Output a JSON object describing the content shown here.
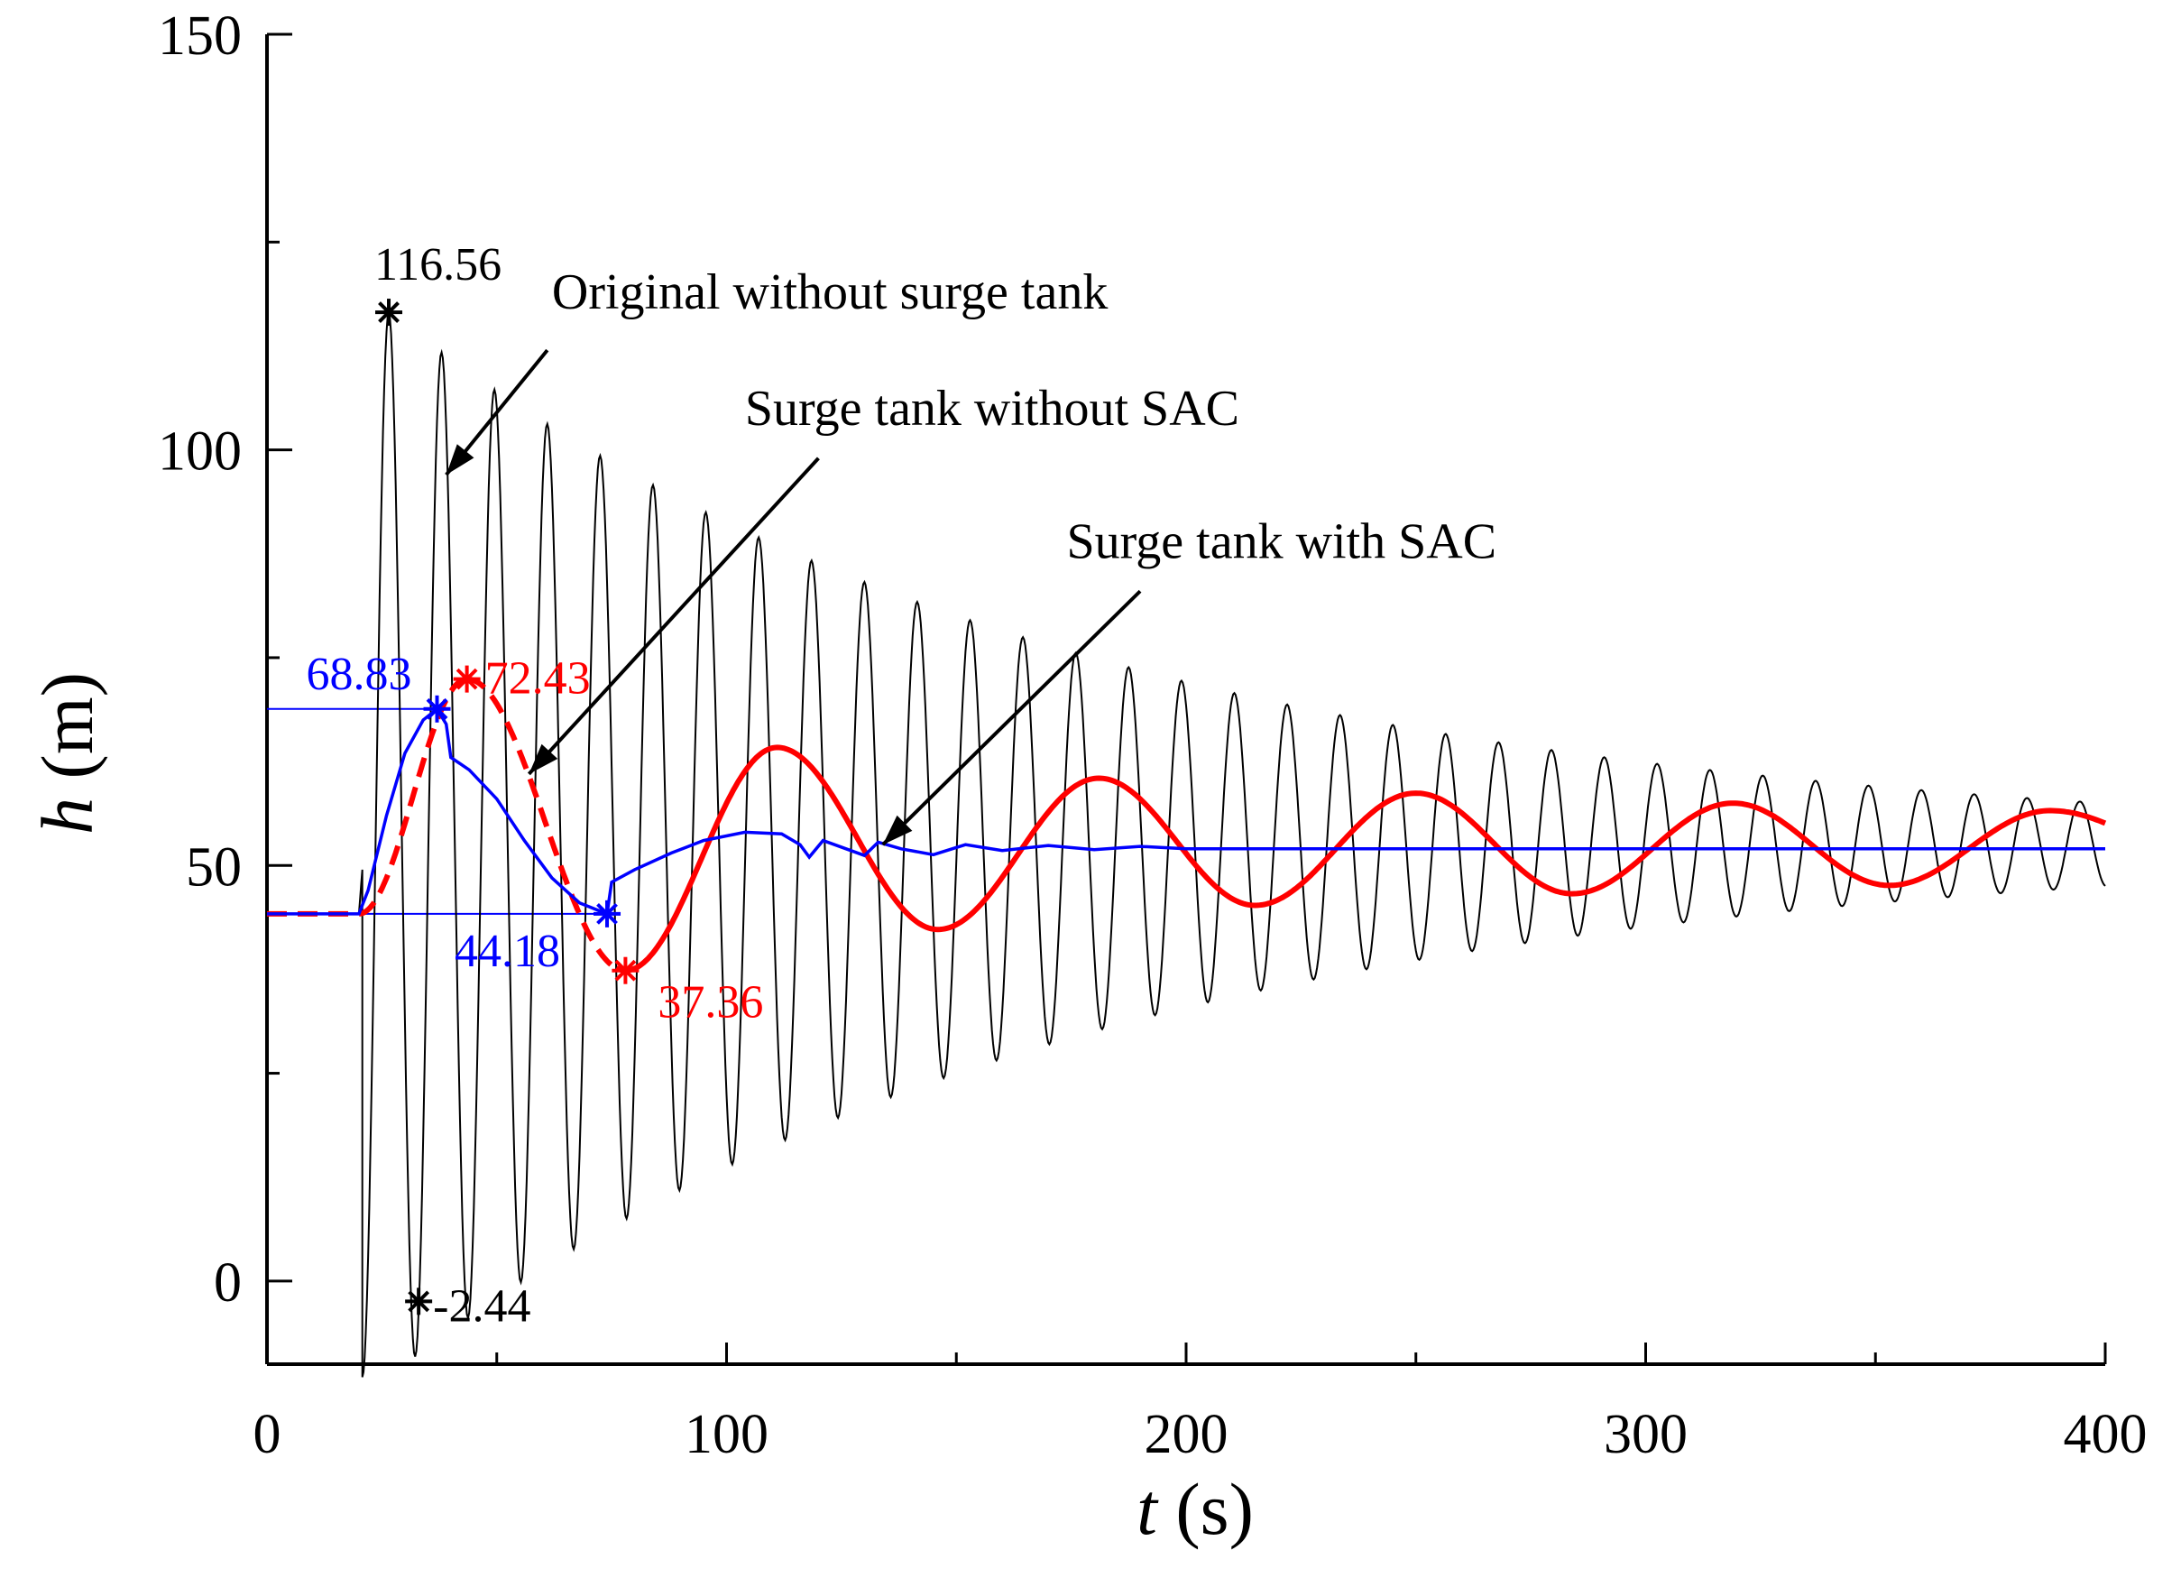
{
  "colors": {
    "original": "#000000",
    "without_sac": "#ff0000",
    "with_sac": "#0000ff",
    "axis": "#000000"
  },
  "chart_data": {
    "type": "line",
    "xlabel_var": "t",
    "xlabel_unit": " (s)",
    "ylabel_var": "h",
    "ylabel_unit": " (m)",
    "xlim": [
      0,
      400
    ],
    "ylim": [
      -10,
      150
    ],
    "x_ticks": [
      0,
      100,
      200,
      300,
      400
    ],
    "y_ticks": [
      0,
      50,
      100,
      150
    ],
    "x_minor_step": 50,
    "y_minor_step": 25,
    "grid": false,
    "initial_level": 44.18,
    "valve_start_time": 20,
    "series": [
      {
        "name": "Original without surge tank",
        "color": "#000000",
        "model": "damped_oscillation",
        "mean": 52.5,
        "period": 11.5,
        "first_peak_t": 26.5,
        "first_peak_value": 116.56,
        "first_trough_t": 33,
        "first_trough_value": -2.44,
        "end_amplitude": 5,
        "end_t": 400
      },
      {
        "name": "Surge tank without SAC",
        "color": "#ff0000",
        "model": "damped_sine",
        "mean": 52.3,
        "period": 68.8,
        "first_peak_t": 43.5,
        "first_peak_value": 72.43,
        "first_trough_t": 78,
        "first_trough_value": 37.36,
        "secondary_peaks": [
          [
            111,
            64.2
          ],
          [
            181,
            60.5
          ],
          [
            250,
            58.7
          ],
          [
            319,
            57.5
          ],
          [
            388,
            56.6
          ]
        ],
        "secondary_troughs": [
          [
            146,
            42.3
          ],
          [
            215,
            45.2
          ],
          [
            284,
            46.6
          ],
          [
            353,
            47.6
          ]
        ],
        "dashed_until_t": 80
      },
      {
        "name": "Surge tank with SAC",
        "color": "#0000ff",
        "model": "keypoints",
        "points": [
          [
            0,
            44.18
          ],
          [
            20,
            44.18
          ],
          [
            22,
            47
          ],
          [
            26,
            56
          ],
          [
            30,
            63.5
          ],
          [
            34,
            67.5
          ],
          [
            37,
            68.83
          ],
          [
            39,
            67
          ],
          [
            40,
            63
          ],
          [
            44,
            61.5
          ],
          [
            50,
            58
          ],
          [
            56,
            53
          ],
          [
            62,
            48.5
          ],
          [
            68,
            45.5
          ],
          [
            74,
            44.18
          ],
          [
            75,
            48
          ],
          [
            80,
            49.5
          ],
          [
            88,
            51.5
          ],
          [
            95,
            53
          ],
          [
            104,
            54
          ],
          [
            112,
            53.8
          ],
          [
            116,
            52.5
          ],
          [
            118,
            51
          ],
          [
            121,
            53
          ],
          [
            126,
            52
          ],
          [
            130,
            51.2
          ],
          [
            133,
            52.8
          ],
          [
            138,
            52
          ],
          [
            145,
            51.3
          ],
          [
            152,
            52.5
          ],
          [
            160,
            51.8
          ],
          [
            170,
            52.4
          ],
          [
            180,
            51.9
          ],
          [
            190,
            52.3
          ],
          [
            200,
            52
          ],
          [
            400,
            52
          ]
        ]
      }
    ],
    "markers": [
      {
        "series": "Original without surge tank",
        "t": 26.5,
        "value": 116.56,
        "label": "116.56",
        "color": "#000000"
      },
      {
        "series": "Original without surge tank",
        "t": 33,
        "value": -2.44,
        "label": "-2.44",
        "color": "#000000"
      },
      {
        "series": "Surge tank with SAC",
        "t": 37,
        "value": 68.83,
        "label": "68.83",
        "color": "#0000ff"
      },
      {
        "series": "Surge tank with SAC",
        "t": 74,
        "value": 44.18,
        "label": "44.18",
        "color": "#0000ff"
      },
      {
        "series": "Surge tank without SAC",
        "t": 43.5,
        "value": 72.43,
        "label": "72.43",
        "color": "#ff0000"
      },
      {
        "series": "Surge tank without SAC",
        "t": 78,
        "value": 37.36,
        "label": "37.36",
        "color": "#ff0000"
      }
    ],
    "reference_lines": [
      {
        "value": 68.83,
        "from_t": 0,
        "to_t": 37,
        "color": "#0000ff"
      },
      {
        "value": 44.18,
        "from_t": 0,
        "to_t": 74,
        "color": "#0000ff"
      }
    ],
    "annotations": [
      {
        "text": "Original without surge tank",
        "text_t": 62,
        "text_value": 117,
        "arrow_from": [
          61,
          112
        ],
        "arrow_to": [
          39,
          97
        ]
      },
      {
        "text": "Surge tank without SAC",
        "text_t": 104,
        "text_value": 103,
        "arrow_from": [
          120,
          99
        ],
        "arrow_to": [
          57,
          61
        ]
      },
      {
        "text": "Surge tank with SAC",
        "text_t": 174,
        "text_value": 87,
        "arrow_from": [
          190,
          83
        ],
        "arrow_to": [
          134,
          52.5
        ]
      }
    ]
  }
}
